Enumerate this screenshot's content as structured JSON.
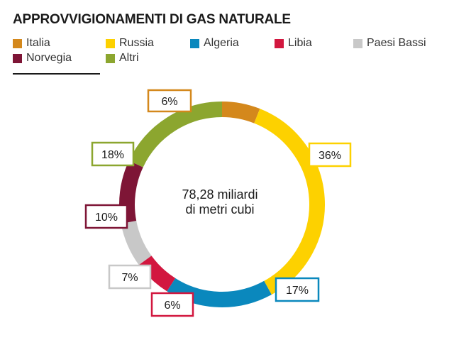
{
  "chart_data": {
    "type": "pie",
    "title": "APPROVVIGIONAMENTI DI GAS NATURALE",
    "center_label": [
      "78,28 miliardi",
      "di metri cubi"
    ],
    "categories": [
      "Italia",
      "Russia",
      "Algeria",
      "Libia",
      "Paesi Bassi",
      "Norvegia",
      "Altri"
    ],
    "values": [
      6,
      36,
      17,
      6,
      7,
      10,
      18
    ],
    "value_labels": [
      "6%",
      "36%",
      "17%",
      "6%",
      "7%",
      "10%",
      "18%"
    ],
    "colors": [
      "#D4881C",
      "#FDD100",
      "#0A88BD",
      "#D2173F",
      "#C8C8C8",
      "#7E1536",
      "#8CA62F"
    ],
    "legend_position": "top"
  }
}
